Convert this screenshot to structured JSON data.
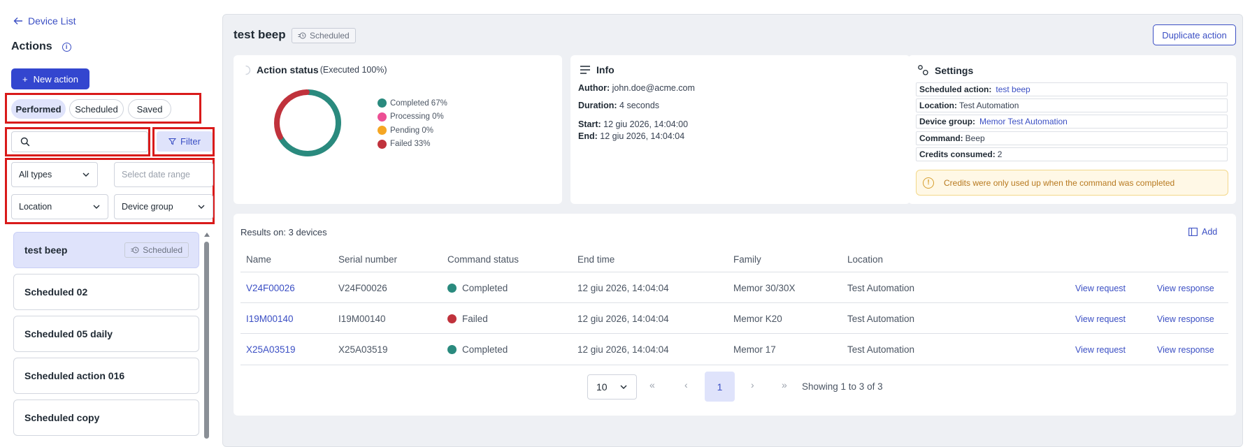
{
  "sidebar": {
    "back_label": "Device List",
    "title": "Actions",
    "new_action_label": "New action",
    "tabs": [
      {
        "label": "Performed",
        "active": true
      },
      {
        "label": "Scheduled",
        "active": false
      },
      {
        "label": "Saved",
        "active": false
      }
    ],
    "search": {
      "value": "",
      "placeholder": ""
    },
    "filter_label": "Filter",
    "type_select": "All types",
    "date_range_placeholder": "Select date range",
    "location_select": "Location",
    "device_group_select": "Device group",
    "items": [
      {
        "label": "test beep",
        "badge": "Scheduled",
        "selected": true
      },
      {
        "label": "Scheduled 02"
      },
      {
        "label": "Scheduled 05 daily"
      },
      {
        "label": "Scheduled action 016"
      },
      {
        "label": "Scheduled copy"
      }
    ]
  },
  "header": {
    "title": "test beep",
    "badge": "Scheduled",
    "duplicate_label": "Duplicate action"
  },
  "status_card": {
    "title": "Action status",
    "subtitle": "(Executed 100%)",
    "legend": [
      {
        "label": "Completed 67%",
        "color": "#2a8a7e",
        "value": 67
      },
      {
        "label": "Processing 0%",
        "color": "#ec4f94",
        "value": 0
      },
      {
        "label": "Pending 0%",
        "color": "#f5a623",
        "value": 0
      },
      {
        "label": "Failed 33%",
        "color": "#c0323c",
        "value": 33
      }
    ]
  },
  "info_card": {
    "title": "Info",
    "author_label": "Author:",
    "author_value": "john.doe@acme.com",
    "duration_label": "Duration:",
    "duration_value": "4 seconds",
    "start_label": "Start:",
    "start_value": "12 giu 2026, 14:04:00",
    "end_label": "End:",
    "end_value": "12 giu 2026, 14:04:04"
  },
  "settings_card": {
    "title": "Settings",
    "scheduled_label": "Scheduled action:",
    "scheduled_value": "test beep",
    "location_label": "Location:",
    "location_value": "Test Automation",
    "group_label": "Device group:",
    "group_value": "Memor Test Automation",
    "command_label": "Command:",
    "command_value": "Beep",
    "credits_label": "Credits consumed:",
    "credits_value": "2",
    "warning": "Credits were only used up when the command was completed"
  },
  "results": {
    "label": "Results on: 3 devices",
    "add_label": "Add",
    "columns": [
      "Name",
      "Serial number",
      "Command status",
      "End time",
      "Family",
      "Location"
    ],
    "rows": [
      {
        "name": "V24F00026",
        "serial": "V24F00026",
        "status": "Completed",
        "status_color": "#2a8a7e",
        "end_time": "12 giu 2026, 14:04:04",
        "family": "Memor 30/30X",
        "location": "Test Automation",
        "req": "View request",
        "resp": "View response"
      },
      {
        "name": "I19M00140",
        "serial": "I19M00140",
        "status": "Failed",
        "status_color": "#c0323c",
        "end_time": "12 giu 2026, 14:04:04",
        "family": "Memor K20",
        "location": "Test Automation",
        "req": "View request",
        "resp": "View response"
      },
      {
        "name": "X25A03519",
        "serial": "X25A03519",
        "status": "Completed",
        "status_color": "#2a8a7e",
        "end_time": "12 giu 2026, 14:04:04",
        "family": "Memor 17",
        "location": "Test Automation",
        "req": "View request",
        "resp": "View response"
      }
    ],
    "page_size": "10",
    "current_page": "1",
    "showing": "Showing 1 to 3 of 3"
  }
}
